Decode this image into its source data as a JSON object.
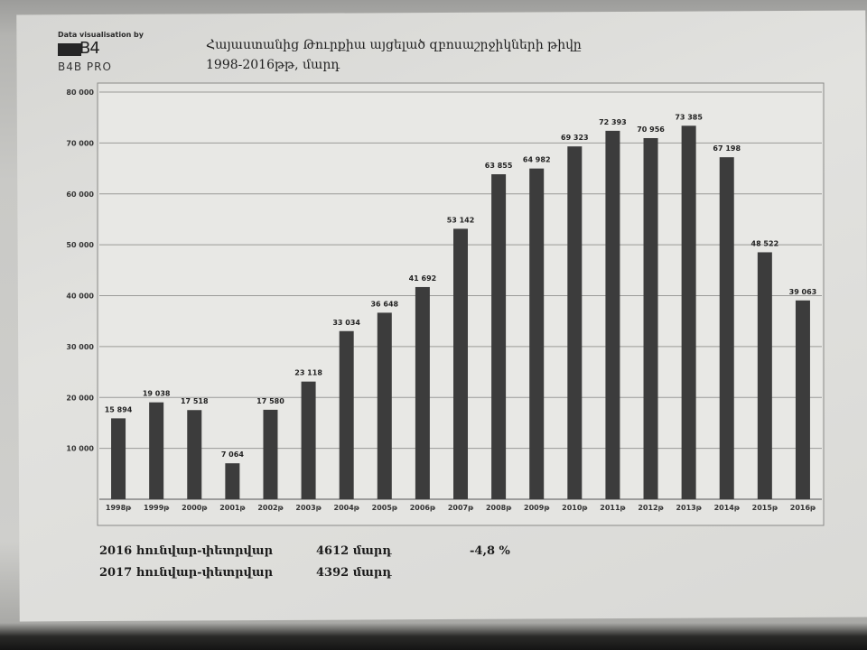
{
  "header": {
    "credit": "Data visualisation by",
    "logo_mark": "B4",
    "logo_text": "B4B PRO",
    "title_line1": "Հայաստանից Թուրքիա այցելած զբոսաշրջիկների թիվը",
    "title_line2": "1998-2016թթ, մարդ"
  },
  "chart_data": {
    "type": "bar",
    "title": "Հայաստանից Թուրքիա այցելած զբոսաշրջիկների թիվը 1998-2016թթ, մարդ",
    "categories": [
      "1998թ",
      "1999թ",
      "2000թ",
      "2001թ",
      "2002թ",
      "2003թ",
      "2004թ",
      "2005թ",
      "2006թ",
      "2007թ",
      "2008թ",
      "2009թ",
      "2010թ",
      "2011թ",
      "2012թ",
      "2013թ",
      "2014թ",
      "2015թ",
      "2016թ"
    ],
    "values": [
      15894,
      19038,
      17518,
      7064,
      17580,
      23118,
      33034,
      36648,
      41692,
      53142,
      63855,
      64982,
      69323,
      72393,
      70956,
      73385,
      67198,
      48522,
      39063
    ],
    "labels": [
      "15 894",
      "19 038",
      "17 518",
      "7 064",
      "17 580",
      "23 118",
      "33 034",
      "36 648",
      "41 692",
      "53 142",
      "63 855",
      "64 982",
      "69 323",
      "72 393",
      "70 956",
      "73 385",
      "67 198",
      "48 522",
      "39 063"
    ],
    "yticks": [
      "",
      "10 000",
      "20 000",
      "30 000",
      "40 000",
      "50 000",
      "60 000",
      "70 000",
      "80 000"
    ],
    "ylim": [
      0,
      80000
    ],
    "xlabel": "",
    "ylabel": "",
    "grid": true,
    "bar_color": "#3c3c3c"
  },
  "footer": {
    "rows": [
      {
        "label": "2016 հունվար-փետրվար",
        "value": "4612 մարդ",
        "change": "-4,8 %"
      },
      {
        "label": "2017 հունվար-փետրվար",
        "value": "4392 մարդ",
        "change": ""
      }
    ]
  }
}
